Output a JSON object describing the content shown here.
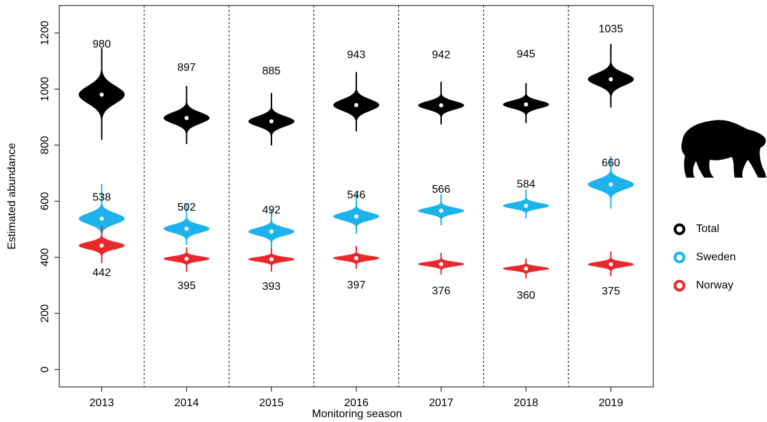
{
  "chart_data": {
    "type": "violin",
    "x_label": "Monitoring season",
    "y_label": "Estimated abundance",
    "categories": [
      "2013",
      "2014",
      "2015",
      "2016",
      "2017",
      "2018",
      "2019"
    ],
    "series": [
      {
        "name": "Total",
        "color": "#000000",
        "values": [
          980,
          897,
          885,
          943,
          942,
          945,
          1035
        ],
        "low": [
          820,
          805,
          800,
          850,
          875,
          880,
          935
        ],
        "high": [
          1145,
          1010,
          985,
          1060,
          1025,
          1020,
          1160
        ]
      },
      {
        "name": "Sweden",
        "color": "#1cb2ec",
        "values": [
          538,
          502,
          492,
          546,
          566,
          584,
          660
        ],
        "low": [
          465,
          445,
          430,
          485,
          515,
          540,
          575
        ],
        "high": [
          660,
          590,
          570,
          625,
          625,
          640,
          760
        ]
      },
      {
        "name": "Norway",
        "color": "#e8282b",
        "values": [
          442,
          395,
          393,
          397,
          376,
          360,
          375
        ],
        "low": [
          380,
          350,
          350,
          360,
          340,
          325,
          335
        ],
        "high": [
          510,
          435,
          430,
          440,
          415,
          395,
          420
        ]
      }
    ],
    "ylim": [
      -62,
      1298
    ],
    "yticks": [
      0,
      200,
      400,
      600,
      800,
      1000,
      1200
    ],
    "legend": "right"
  }
}
